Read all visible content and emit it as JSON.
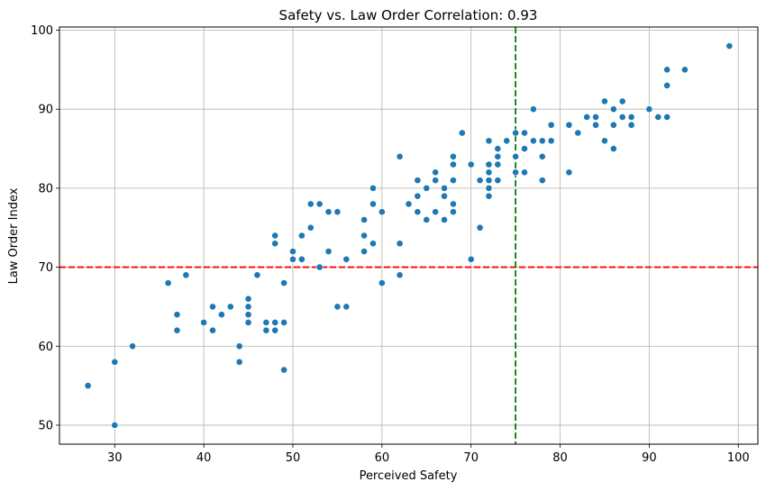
{
  "chart_data": {
    "type": "scatter",
    "title": "Safety vs. Law Order Correlation: 0.93",
    "xlabel": "Perceived Safety",
    "ylabel": "Law Order Index",
    "xlim": [
      23.8,
      102.2
    ],
    "ylim": [
      47.6,
      100.4
    ],
    "xticks": [
      30,
      40,
      50,
      60,
      70,
      80,
      90,
      100
    ],
    "yticks": [
      50,
      60,
      70,
      80,
      90,
      100
    ],
    "grid": true,
    "point_color": "#1f77b4",
    "reference_lines": [
      {
        "orientation": "horizontal",
        "value": 70,
        "color": "#ff0000",
        "style": "dashed"
      },
      {
        "orientation": "vertical",
        "value": 75,
        "color": "#008000",
        "style": "dashed"
      }
    ],
    "points": [
      [
        27,
        55
      ],
      [
        30,
        58
      ],
      [
        30,
        50
      ],
      [
        32,
        60
      ],
      [
        36,
        68
      ],
      [
        37,
        64
      ],
      [
        37,
        62
      ],
      [
        38,
        69
      ],
      [
        40,
        63
      ],
      [
        41,
        65
      ],
      [
        41,
        62
      ],
      [
        42,
        64
      ],
      [
        43,
        65
      ],
      [
        44,
        60
      ],
      [
        44,
        58
      ],
      [
        45,
        66
      ],
      [
        45,
        65
      ],
      [
        45,
        64
      ],
      [
        45,
        63
      ],
      [
        46,
        69
      ],
      [
        47,
        63
      ],
      [
        47,
        62
      ],
      [
        48,
        74
      ],
      [
        48,
        73
      ],
      [
        48,
        63
      ],
      [
        48,
        62
      ],
      [
        49,
        68
      ],
      [
        49,
        63
      ],
      [
        49,
        57
      ],
      [
        50,
        72
      ],
      [
        50,
        71
      ],
      [
        51,
        74
      ],
      [
        51,
        71
      ],
      [
        52,
        78
      ],
      [
        52,
        75
      ],
      [
        53,
        78
      ],
      [
        53,
        70
      ],
      [
        54,
        77
      ],
      [
        54,
        72
      ],
      [
        55,
        77
      ],
      [
        55,
        65
      ],
      [
        56,
        71
      ],
      [
        56,
        65
      ],
      [
        58,
        76
      ],
      [
        58,
        74
      ],
      [
        58,
        72
      ],
      [
        59,
        80
      ],
      [
        59,
        78
      ],
      [
        59,
        73
      ],
      [
        60,
        77
      ],
      [
        60,
        68
      ],
      [
        62,
        84
      ],
      [
        62,
        73
      ],
      [
        62,
        69
      ],
      [
        63,
        78
      ],
      [
        64,
        81
      ],
      [
        64,
        79
      ],
      [
        64,
        77
      ],
      [
        65,
        80
      ],
      [
        65,
        76
      ],
      [
        66,
        82
      ],
      [
        66,
        81
      ],
      [
        66,
        77
      ],
      [
        67,
        80
      ],
      [
        67,
        79
      ],
      [
        67,
        76
      ],
      [
        68,
        84
      ],
      [
        68,
        83
      ],
      [
        68,
        81
      ],
      [
        68,
        78
      ],
      [
        68,
        77
      ],
      [
        69,
        87
      ],
      [
        70,
        83
      ],
      [
        70,
        71
      ],
      [
        71,
        81
      ],
      [
        71,
        75
      ],
      [
        72,
        86
      ],
      [
        72,
        83
      ],
      [
        72,
        82
      ],
      [
        72,
        81
      ],
      [
        72,
        80
      ],
      [
        72,
        79
      ],
      [
        73,
        85
      ],
      [
        73,
        84
      ],
      [
        73,
        83
      ],
      [
        73,
        81
      ],
      [
        74,
        86
      ],
      [
        75,
        87
      ],
      [
        75,
        84
      ],
      [
        75,
        82
      ],
      [
        76,
        87
      ],
      [
        76,
        85
      ],
      [
        76,
        82
      ],
      [
        77,
        90
      ],
      [
        77,
        86
      ],
      [
        78,
        86
      ],
      [
        78,
        84
      ],
      [
        78,
        81
      ],
      [
        79,
        88
      ],
      [
        79,
        86
      ],
      [
        81,
        88
      ],
      [
        81,
        82
      ],
      [
        82,
        87
      ],
      [
        83,
        89
      ],
      [
        84,
        89
      ],
      [
        84,
        88
      ],
      [
        85,
        91
      ],
      [
        85,
        86
      ],
      [
        86,
        90
      ],
      [
        86,
        88
      ],
      [
        86,
        85
      ],
      [
        87,
        91
      ],
      [
        87,
        89
      ],
      [
        88,
        89
      ],
      [
        88,
        88
      ],
      [
        90,
        90
      ],
      [
        91,
        89
      ],
      [
        92,
        95
      ],
      [
        92,
        93
      ],
      [
        92,
        89
      ],
      [
        94,
        95
      ],
      [
        99,
        98
      ]
    ]
  }
}
